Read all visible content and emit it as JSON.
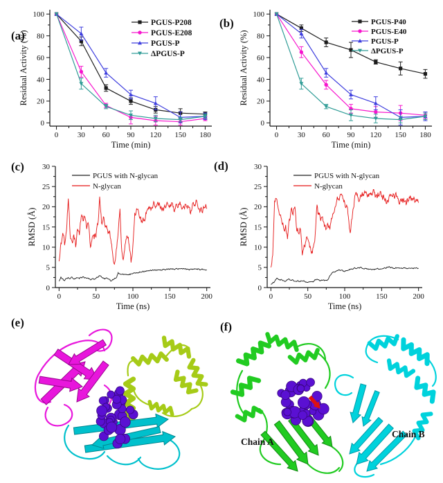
{
  "panels": {
    "a": {
      "label": "(a)"
    },
    "b": {
      "label": "(b)"
    },
    "c": {
      "label": "(c)"
    },
    "d": {
      "label": "(d)"
    },
    "e": {
      "label": "(e)"
    },
    "f": {
      "label": "(f)",
      "chain_a_label": "Chain A",
      "chain_b_label": "Chain B"
    }
  },
  "colors": {
    "axis": "#111111",
    "black_series": "#1c1c1c",
    "magenta_series": "#f715cd",
    "blue_series": "#3e3ede",
    "teal_series": "#2f9c96",
    "red_series": "#e51515",
    "purple_glycan": "#5a10d2",
    "purple_glycan_dark": "#38067e",
    "magenta_domain": "#e816dc",
    "magenta_domain_dark": "#99058f",
    "lime_domain": "#a6cb17",
    "lime_domain_dark": "#6f9a12",
    "cyan_domain": "#00c0cc",
    "cyan_domain_dark": "#00858e",
    "green_chain": "#21cb21",
    "green_chain_dark": "#128812",
    "cyan_chain": "#00d2dc",
    "cyan_chain_dark": "#009aa8",
    "red_accent": "#dd1111"
  },
  "chart_data": [
    {
      "panel": "a",
      "type": "line",
      "xlabel": "Time (min)",
      "ylabel": "Residual Activity (%)",
      "x": [
        0,
        30,
        60,
        90,
        120,
        150,
        180
      ],
      "xlim": [
        -8,
        188
      ],
      "ylim": [
        -3,
        104
      ],
      "xticks": [
        0,
        30,
        60,
        90,
        120,
        150,
        180
      ],
      "yticks": [
        0,
        20,
        40,
        60,
        80,
        100
      ],
      "grid": false,
      "legend_position": "inside top-right",
      "series": [
        {
          "name": "PGUS-P208",
          "color": "#1c1c1c",
          "marker": "square",
          "values": [
            100,
            75,
            32,
            20,
            12,
            9,
            8
          ],
          "errors": [
            0,
            4,
            3,
            3,
            3,
            4,
            2
          ]
        },
        {
          "name": "PGUS-E208",
          "color": "#f715cd",
          "marker": "circle",
          "values": [
            100,
            47,
            16,
            5,
            2,
            1,
            4
          ],
          "errors": [
            0,
            5,
            2,
            6,
            4,
            3,
            2
          ]
        },
        {
          "name": "PGUS-P",
          "color": "#3e3ede",
          "marker": "triangle-up",
          "values": [
            100,
            82,
            46,
            26,
            18,
            5,
            6
          ],
          "errors": [
            0,
            6,
            4,
            4,
            6,
            5,
            3
          ]
        },
        {
          "name": "ΔPGUS-P",
          "color": "#2f9c96",
          "marker": "triangle-down",
          "values": [
            100,
            36,
            15,
            7,
            4,
            3,
            6
          ],
          "errors": [
            0,
            5,
            2,
            4,
            3,
            2,
            2
          ]
        }
      ]
    },
    {
      "panel": "b",
      "type": "line",
      "xlabel": "Time (min)",
      "ylabel": "Residual Activity (%)",
      "x": [
        0,
        30,
        60,
        90,
        120,
        150,
        180
      ],
      "xlim": [
        -8,
        188
      ],
      "ylim": [
        -3,
        104
      ],
      "xticks": [
        0,
        30,
        60,
        90,
        120,
        150,
        180
      ],
      "yticks": [
        0,
        20,
        40,
        60,
        80,
        100
      ],
      "grid": false,
      "legend_position": "inside top-right",
      "series": [
        {
          "name": "PGUS-P40",
          "color": "#1c1c1c",
          "marker": "square",
          "values": [
            100,
            87,
            74,
            67,
            56,
            50,
            45
          ],
          "errors": [
            0,
            3,
            4,
            7,
            2,
            6,
            4
          ]
        },
        {
          "name": "PGUS-E40",
          "color": "#f715cd",
          "marker": "circle",
          "values": [
            100,
            65,
            35,
            13,
            10,
            9,
            7
          ],
          "errors": [
            0,
            5,
            4,
            4,
            5,
            7,
            3
          ]
        },
        {
          "name": "PGUS-P",
          "color": "#3e3ede",
          "marker": "triangle-up",
          "values": [
            100,
            82,
            46,
            26,
            18,
            5,
            6
          ],
          "errors": [
            0,
            4,
            4,
            4,
            6,
            7,
            4
          ]
        },
        {
          "name": "ΔPGUS-P",
          "color": "#2f9c96",
          "marker": "triangle-down",
          "values": [
            100,
            36,
            15,
            7,
            4,
            3,
            6
          ],
          "errors": [
            0,
            5,
            2,
            5,
            4,
            3,
            3
          ]
        }
      ]
    },
    {
      "panel": "c",
      "type": "line",
      "xlabel": "Time (ns)",
      "ylabel": "RMSD (Å)",
      "xlim": [
        -5,
        205
      ],
      "ylim": [
        0,
        30
      ],
      "xticks": [
        0,
        50,
        100,
        150,
        200
      ],
      "yticks": [
        0,
        5,
        10,
        15,
        20,
        25,
        30
      ],
      "grid": false,
      "legend_position": "inside top-left",
      "series": [
        {
          "name": "PGUS with N-glycan",
          "color": "#1c1c1c",
          "marker": "none",
          "x_start": 0,
          "x_step": 2.5,
          "noise": 0.18,
          "y": [
            1.6,
            2.6,
            2.2,
            1.7,
            2.3,
            2.5,
            2.2,
            2.6,
            2.1,
            2.3,
            2.4,
            2.2,
            2.5,
            2.7,
            2.4,
            2.3,
            2.2,
            1.9,
            2.2,
            2.0,
            2.3,
            2.5,
            2.9,
            2.6,
            2.4,
            2.2,
            2.3,
            2.1,
            1.6,
            2.0,
            2.2,
            2.4,
            3.7,
            3.4,
            3.3,
            3.2,
            3.3,
            3.2,
            3.3,
            3.4,
            3.5,
            3.6,
            3.7,
            3.7,
            3.8,
            3.9,
            3.9,
            4.0,
            4.1,
            4.2,
            4.2,
            4.3,
            4.3,
            4.3,
            4.4,
            4.4,
            4.4,
            4.5,
            4.5,
            4.5,
            4.5,
            4.6,
            4.6,
            4.6,
            4.6,
            4.7,
            4.7,
            4.6,
            4.6,
            4.5,
            4.5,
            4.5,
            4.5,
            4.6,
            4.6,
            4.5,
            4.5,
            4.5,
            4.5,
            4.4,
            4.4
          ]
        },
        {
          "name": "N-glycan",
          "color": "#e51515",
          "marker": "none",
          "x_start": 0,
          "x_step": 2.5,
          "noise": 1.1,
          "y": [
            6.5,
            11,
            13.5,
            10.5,
            14,
            22,
            13,
            11.5,
            13,
            10,
            14.5,
            13,
            17.5,
            16.5,
            17.5,
            14.5,
            15.5,
            10,
            12.5,
            12,
            12.5,
            15.5,
            22.5,
            16,
            17.5,
            15,
            14.5,
            13.5,
            12,
            8.5,
            5.8,
            9.5,
            13.5,
            19.5,
            9,
            7.5,
            11,
            12.5,
            10.5,
            6.2,
            10.5,
            18.5,
            19.5,
            19,
            17.5,
            16,
            16.5,
            18.5,
            19.5,
            20,
            19.5,
            20.5,
            20,
            20.5,
            20.5,
            19.5,
            19.5,
            20,
            20,
            20.5,
            20.5,
            21,
            20,
            19.5,
            20,
            20.5,
            20.5,
            19.8,
            19.5,
            20,
            20,
            18.5,
            19.5,
            20.5,
            21,
            20.5,
            19.5,
            19.8,
            19.5,
            19.7,
            19.5
          ]
        }
      ]
    },
    {
      "panel": "d",
      "type": "line",
      "xlabel": "Time (ns)",
      "ylabel": "RMSD (Å)",
      "xlim": [
        -5,
        205
      ],
      "ylim": [
        0,
        30
      ],
      "xticks": [
        0,
        50,
        100,
        150,
        200
      ],
      "yticks": [
        0,
        5,
        10,
        15,
        20,
        25,
        30
      ],
      "grid": false,
      "legend_position": "inside top-left",
      "series": [
        {
          "name": "PGUS with N-glycan",
          "color": "#1c1c1c",
          "marker": "none",
          "x_start": 0,
          "x_step": 2.5,
          "noise": 0.18,
          "y": [
            0.8,
            1.2,
            1.5,
            2.2,
            2.1,
            1.8,
            1.9,
            1.7,
            1.6,
            1.9,
            2.1,
            1.8,
            1.9,
            1.6,
            1.5,
            1.6,
            1.5,
            1.6,
            1.7,
            1.4,
            1.3,
            1.4,
            1.5,
            1.4,
            2.0,
            2.1,
            1.9,
            1.8,
            1.8,
            1.7,
            1.8,
            2.0,
            3.0,
            3.6,
            3.8,
            4.0,
            4.2,
            4.4,
            4.3,
            4.1,
            4.0,
            4.2,
            4.3,
            4.5,
            4.6,
            4.8,
            4.7,
            4.9,
            4.8,
            5.0,
            4.7,
            4.8,
            4.6,
            4.5,
            4.6,
            4.5,
            4.4,
            4.6,
            4.7,
            4.6,
            4.6,
            4.7,
            4.8,
            5.1,
            5.2,
            4.9,
            4.8,
            4.7,
            4.8,
            4.9,
            4.8,
            4.7,
            4.9,
            4.8,
            4.7,
            4.8,
            4.8,
            4.7,
            4.8,
            4.9,
            4.8
          ]
        },
        {
          "name": "N-glycan",
          "color": "#e51515",
          "marker": "none",
          "x_start": 0,
          "x_step": 2.5,
          "noise": 1.1,
          "y": [
            5,
            8,
            21.5,
            22,
            19.5,
            18,
            16,
            14.5,
            15.5,
            12,
            17,
            19.5,
            18,
            20,
            14,
            13.5,
            14.5,
            8,
            10.5,
            11.5,
            12,
            10,
            8.5,
            10,
            13,
            20.5,
            18,
            16.5,
            17.5,
            15,
            14.5,
            15.5,
            14.5,
            17,
            18.5,
            20,
            22.5,
            21.5,
            23,
            22,
            21,
            20.5,
            17.5,
            13.5,
            17,
            20,
            23.5,
            22.5,
            21.5,
            22.5,
            23,
            23.5,
            23,
            22.5,
            23.5,
            23,
            23.5,
            23,
            23.5,
            23,
            22.5,
            23,
            22,
            21.5,
            22.5,
            23,
            22.5,
            22,
            22.5,
            22,
            21.5,
            22,
            22,
            21.5,
            22,
            22.5,
            21.5,
            22,
            21,
            21.5,
            21
          ]
        }
      ]
    }
  ]
}
